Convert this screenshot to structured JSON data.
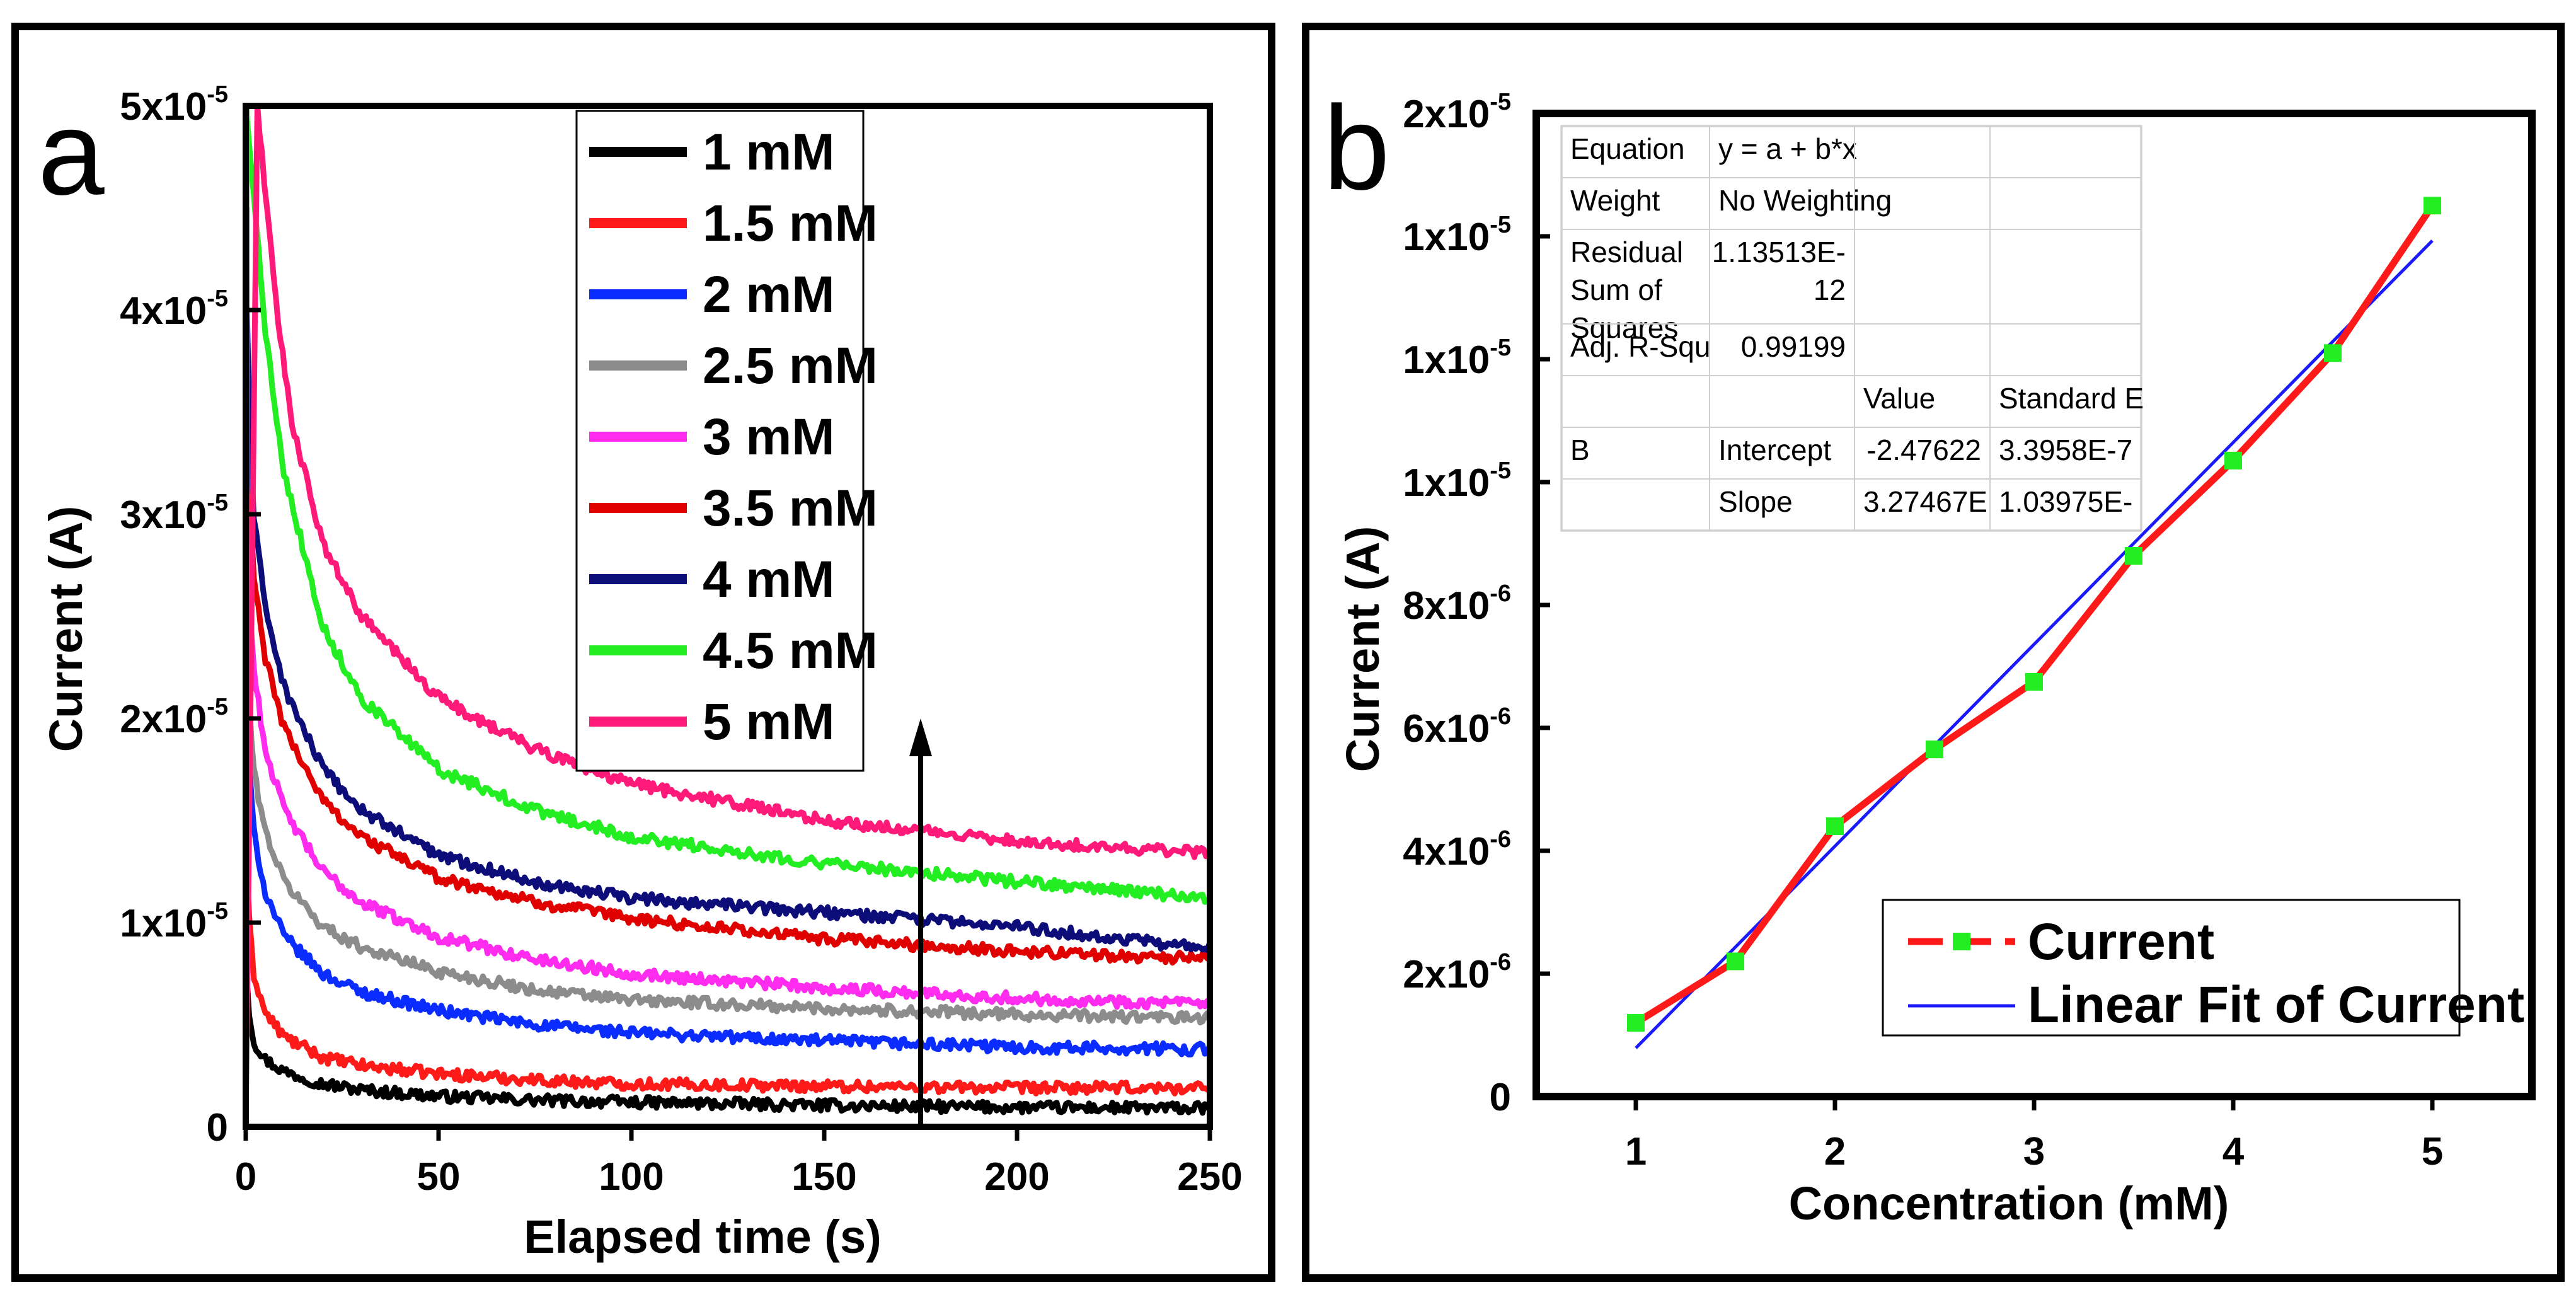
{
  "panels": {
    "a": {
      "letter": "a",
      "chart_data": {
        "type": "line",
        "title": "",
        "xlabel": "Elapsed time (s)",
        "ylabel": "Current (A)",
        "xlim": [
          0,
          250
        ],
        "ylim": [
          0,
          5e-05
        ],
        "x_ticks": [
          {
            "value": 0,
            "label": "0"
          },
          {
            "value": 50,
            "label": "50"
          },
          {
            "value": 100,
            "label": "100"
          },
          {
            "value": 150,
            "label": "150"
          },
          {
            "value": 200,
            "label": "200"
          },
          {
            "value": 250,
            "label": "250"
          }
        ],
        "y_ticks": [
          {
            "value": 0,
            "mantissa": "0",
            "exp": ""
          },
          {
            "value": 1e-05,
            "mantissa": "1x10",
            "exp": "-5"
          },
          {
            "value": 2e-05,
            "mantissa": "2x10",
            "exp": "-5"
          },
          {
            "value": 3e-05,
            "mantissa": "3x10",
            "exp": "-5"
          },
          {
            "value": 4e-05,
            "mantissa": "4x10",
            "exp": "-5"
          },
          {
            "value": 5e-05,
            "mantissa": "5x10",
            "exp": "-5"
          }
        ],
        "series": [
          {
            "name": "1 mM",
            "color": "#000000",
            "peak": 9e-06,
            "shape": [
              0,
              0.5,
              2,
              5,
              10,
              20,
              30,
              50,
              75,
              100,
              150,
              200,
              250
            ],
            "values": [
              9e-06,
              6.2e-06,
              4.2e-06,
              3.3e-06,
              2.7e-06,
              2.1e-06,
              1.8e-06,
              1.5e-06,
              1.3e-06,
              1.2e-06,
              1.05e-06,
              9.5e-07,
              9e-07
            ]
          },
          {
            "name": "1.5 mM",
            "color": "#ff1a1a",
            "peak": 1.57e-05,
            "shape": [
              0,
              0.5,
              2,
              5,
              10,
              20,
              30,
              50,
              75,
              100,
              150,
              200,
              250
            ],
            "values": [
              1.57e-05,
              1.1e-05,
              7.5e-06,
              5.6e-06,
              4.4e-06,
              3.4e-06,
              3e-06,
              2.6e-06,
              2.3e-06,
              2.1e-06,
              2e-06,
              1.9e-06,
              1.9e-06
            ]
          },
          {
            "name": "2 mM",
            "color": "#0a2cff",
            "peak": 2.4e-05,
            "shape": [
              0,
              0.5,
              2,
              5,
              10,
              20,
              30,
              50,
              75,
              100,
              150,
              200,
              250
            ],
            "values": [
              2.4e-05,
              1.9e-05,
              1.45e-05,
              1.15e-05,
              9.3e-06,
              7.5e-06,
              6.6e-06,
              5.7e-06,
              5e-06,
              4.6e-06,
              4.2e-06,
              3.9e-06,
              3.8e-06
            ]
          },
          {
            "name": "2.5 mM",
            "color": "#8c8c8c",
            "peak": 2.65e-05,
            "shape": [
              0,
              0.5,
              2,
              5,
              10,
              20,
              30,
              50,
              75,
              100,
              150,
              200,
              250
            ],
            "values": [
              2.65e-05,
              2.2e-05,
              1.75e-05,
              1.45e-05,
              1.2e-05,
              9.8e-06,
              8.8e-06,
              7.6e-06,
              6.7e-06,
              6.2e-06,
              5.8e-06,
              5.5e-06,
              5.3e-06
            ]
          },
          {
            "name": "3 mM",
            "color": "#ff2bef",
            "peak": 3.4e-05,
            "shape": [
              0,
              0.5,
              2,
              5,
              10,
              20,
              30,
              50,
              75,
              100,
              150,
              200,
              250
            ],
            "values": [
              3.4e-05,
              2.8e-05,
              2.25e-05,
              1.85e-05,
              1.55e-05,
              1.25e-05,
              1.1e-05,
              9.3e-06,
              8.2e-06,
              7.5e-06,
              6.8e-06,
              6.3e-06,
              6e-06
            ]
          },
          {
            "name": "3.5 mM",
            "color": "#e00000",
            "peak": 3.9e-05,
            "shape": [
              0,
              0.5,
              2,
              5,
              10,
              20,
              30,
              50,
              75,
              100,
              150,
              200,
              250
            ],
            "values": [
              3.9e-05,
              3.3e-05,
              2.7e-05,
              2.3e-05,
              1.95e-05,
              1.6e-05,
              1.42e-05,
              1.22e-05,
              1.1e-05,
              1.02e-05,
              9.2e-06,
              8.6e-06,
              8.2e-06
            ]
          },
          {
            "name": "4 mM",
            "color": "#0d0d7a",
            "peak": 4.5e-05,
            "shape": [
              0,
              0.5,
              2,
              5,
              10,
              20,
              30,
              50,
              75,
              100,
              150,
              200,
              250
            ],
            "values": [
              4.5e-05,
              3.7e-05,
              3e-05,
              2.55e-05,
              2.15e-05,
              1.75e-05,
              1.55e-05,
              1.33e-05,
              1.2e-05,
              1.12e-05,
              1.05e-05,
              9.8e-06,
              8.7e-06
            ]
          },
          {
            "name": "4.5 mM",
            "color": "#22ee22",
            "peak": 5e-05,
            "shape": [
              0,
              2,
              5,
              10,
              20,
              30,
              50,
              75,
              100,
              150,
              200,
              250
            ],
            "values": [
              5e-05,
              4.6e-05,
              3.9e-05,
              3.2e-05,
              2.45e-05,
              2.1e-05,
              1.75e-05,
              1.55e-05,
              1.42e-05,
              1.29e-05,
              1.2e-05,
              1.12e-05
            ]
          },
          {
            "name": "5 mM",
            "color": "#ff1a7a",
            "peak": 5e-05,
            "shape": [
              3,
              5,
              8,
              12,
              20,
              30,
              50,
              75,
              100,
              150,
              200,
              250
            ],
            "values": [
              5e-05,
              4.6e-05,
              4e-05,
              3.45e-05,
              2.85e-05,
              2.5e-05,
              2.1e-05,
              1.85e-05,
              1.68e-05,
              1.5e-05,
              1.4e-05,
              1.34e-05
            ]
          }
        ],
        "annotations": [
          {
            "type": "arrow",
            "x": 175,
            "y_from": 0,
            "y_to": 2e-05,
            "text": ""
          }
        ],
        "legend_position": "top-center"
      }
    },
    "b": {
      "letter": "b",
      "chart_data": {
        "type": "line",
        "title": "",
        "xlabel": "Concentration (mM)",
        "ylabel": "Current (A)",
        "xlim": [
          0.5,
          5.5
        ],
        "ylim": [
          0,
          1.6e-05
        ],
        "x_ticks": [
          {
            "value": 1,
            "label": "1"
          },
          {
            "value": 2,
            "label": "2"
          },
          {
            "value": 3,
            "label": "3"
          },
          {
            "value": 4,
            "label": "4"
          },
          {
            "value": 5,
            "label": "5"
          }
        ],
        "y_ticks": [
          {
            "value": 0,
            "mantissa": "0",
            "exp": ""
          },
          {
            "value": 2e-06,
            "mantissa": "2x10",
            "exp": "-6"
          },
          {
            "value": 4e-06,
            "mantissa": "4x10",
            "exp": "-6"
          },
          {
            "value": 6e-06,
            "mantissa": "6x10",
            "exp": "-6"
          },
          {
            "value": 8e-06,
            "mantissa": "8x10",
            "exp": "-6"
          },
          {
            "value": 1e-05,
            "mantissa": "1x10",
            "exp": "-5"
          },
          {
            "value": 1.2e-05,
            "mantissa": "1x10",
            "exp": "-5"
          },
          {
            "value": 1.4e-05,
            "mantissa": "1x10",
            "exp": "-5"
          },
          {
            "value": 1.6e-05,
            "mantissa": "2x10",
            "exp": "-5"
          }
        ],
        "series": [
          {
            "name": "Current",
            "color": "#ff1a1a",
            "marker_color": "#22ee22",
            "x": [
              1,
              1.5,
              2,
              2.5,
              3,
              3.5,
              4,
              4.5,
              5
            ],
            "values": [
              1.2e-06,
              2.2e-06,
              4.4e-06,
              5.65e-06,
              6.75e-06,
              8.8e-06,
              1.035e-05,
              1.21e-05,
              1.45e-05
            ]
          },
          {
            "name": "Linear Fit of Current",
            "color": "#1a1aff",
            "x": [
              1,
              5
            ],
            "values": [
              7.9e-07,
              1.393e-05
            ]
          }
        ],
        "legend_position": "bottom-right",
        "fit_table": {
          "rows": [
            [
              "Equation",
              "y = a + b*x",
              "",
              ""
            ],
            [
              "Weight",
              "No Weighting",
              "",
              ""
            ],
            [
              "Residual\nSum of\nSquares",
              "1.13513E-\n12",
              "",
              ""
            ],
            [
              "Adj. R-Squ",
              "0.99199",
              "",
              ""
            ],
            [
              "",
              "",
              "Value",
              "Standard E"
            ],
            [
              "B",
              "Intercept",
              "-2.47622",
              "3.3958E-7"
            ],
            [
              "",
              "Slope",
              "3.27467E",
              "1.03975E-"
            ]
          ]
        }
      }
    }
  }
}
